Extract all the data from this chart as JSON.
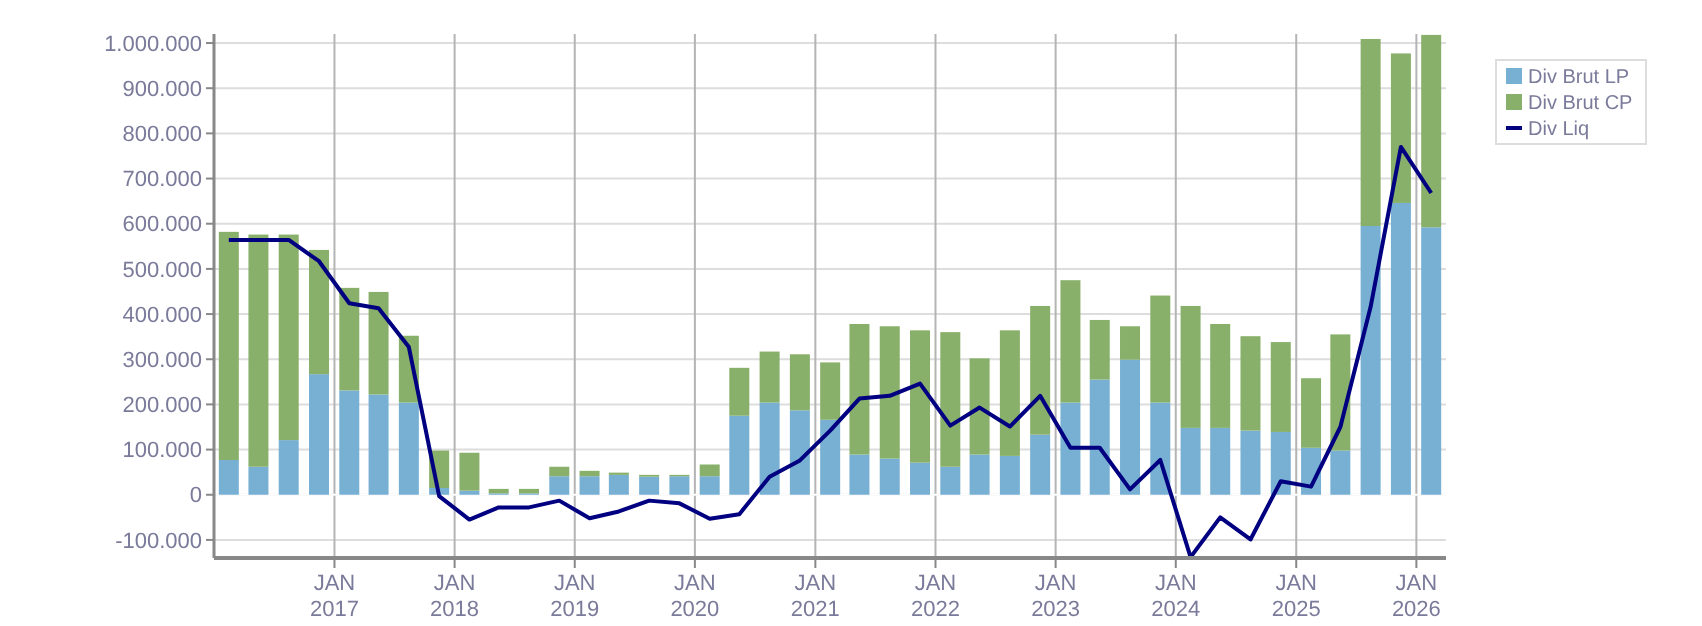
{
  "chart_data": {
    "type": "bar",
    "stacked": true,
    "x": [
      "2016-02-15",
      "2016-05-15",
      "2016-08-15",
      "2016-11-15",
      "2017-02-15",
      "2017-05-15",
      "2017-08-15",
      "2017-11-15",
      "2018-02-15",
      "2018-05-15",
      "2018-08-15",
      "2018-11-15",
      "2019-02-15",
      "2019-05-15",
      "2019-08-15",
      "2019-11-15",
      "2020-02-15",
      "2020-05-15",
      "2020-08-15",
      "2020-11-15",
      "2021-02-15",
      "2021-05-15",
      "2021-08-15",
      "2021-11-15",
      "2022-02-15",
      "2022-05-15",
      "2022-08-15",
      "2022-11-15",
      "2023-02-15",
      "2023-05-15",
      "2023-08-15",
      "2023-11-15",
      "2024-02-15",
      "2024-05-15",
      "2024-08-15",
      "2024-11-15",
      "2025-02-15",
      "2025-05-15",
      "2025-08-15",
      "2025-11-15",
      "2026-02-15"
    ],
    "series": [
      {
        "name": "Div Brut LP",
        "color": "#78b0d4",
        "values": [
          77000,
          62000,
          121000,
          267000,
          231000,
          222000,
          204000,
          15000,
          9000,
          3000,
          3000,
          41000,
          41000,
          44000,
          40000,
          41000,
          41000,
          175000,
          204000,
          187000,
          166000,
          89000,
          80000,
          71000,
          62000,
          89000,
          86000,
          133000,
          204000,
          255000,
          299000,
          204000,
          148000,
          148000,
          142000,
          139000,
          104000,
          98000,
          595000,
          646000,
          592000
        ]
      },
      {
        "name": "Div Brut CP",
        "color": "#88b06a",
        "values": [
          505000,
          514000,
          455000,
          275000,
          227000,
          227000,
          148000,
          83000,
          84000,
          10000,
          10000,
          21000,
          12000,
          5000,
          4000,
          3000,
          26000,
          106000,
          113000,
          124000,
          127000,
          289000,
          293000,
          293000,
          298000,
          213000,
          278000,
          285000,
          271000,
          132000,
          74000,
          237000,
          270000,
          230000,
          209000,
          199000,
          154000,
          257000,
          414000,
          331000,
          426000
        ]
      },
      {
        "name": "Div Liq",
        "type": "line",
        "color": "#000080",
        "values": [
          564000,
          564000,
          564000,
          517000,
          424000,
          413000,
          327000,
          -3000,
          -55000,
          -28000,
          -28000,
          -13000,
          -52000,
          -37000,
          -13000,
          -19000,
          -53000,
          -43000,
          40000,
          76000,
          142000,
          213000,
          219000,
          246000,
          153000,
          193000,
          151000,
          219000,
          104000,
          104000,
          12000,
          77000,
          -138000,
          -50000,
          -99000,
          30000,
          18000,
          150000,
          416000,
          770000,
          668000
        ]
      }
    ],
    "xlim": [
      "2016-01-01",
      "2026-04-01"
    ],
    "xticks": [
      {
        "value": "2017-01-01",
        "label": "JAN 2017"
      },
      {
        "value": "2018-01-01",
        "label": "JAN 2018"
      },
      {
        "value": "2019-01-01",
        "label": "JAN 2019"
      },
      {
        "value": "2020-01-01",
        "label": "JAN 2020"
      },
      {
        "value": "2021-01-01",
        "label": "JAN 2021"
      },
      {
        "value": "2022-01-01",
        "label": "JAN 2022"
      },
      {
        "value": "2023-01-01",
        "label": "JAN 2023"
      },
      {
        "value": "2024-01-01",
        "label": "JAN 2024"
      },
      {
        "value": "2025-01-01",
        "label": "JAN 2025"
      },
      {
        "value": "2026-01-01",
        "label": "JAN 2026"
      }
    ],
    "ylim": [
      -140000,
      1020000
    ],
    "yticks": [
      {
        "value": -100000,
        "label": "-100.000"
      },
      0,
      {
        "value": 100000,
        "label": "100.000"
      },
      {
        "value": 200000,
        "label": "200.000"
      },
      {
        "value": 300000,
        "label": "300.000"
      },
      {
        "value": 400000,
        "label": "400.000"
      },
      {
        "value": 500000,
        "label": "500.000"
      },
      {
        "value": 600000,
        "label": "600.000"
      },
      {
        "value": 700000,
        "label": "700.000"
      },
      {
        "value": 800000,
        "label": "800.000"
      },
      {
        "value": 900000,
        "label": "900.000"
      },
      {
        "value": 1000000,
        "label": "1.000.000"
      }
    ],
    "grid": true,
    "legend": "top right",
    "line_style": "solid",
    "marker": "none"
  }
}
